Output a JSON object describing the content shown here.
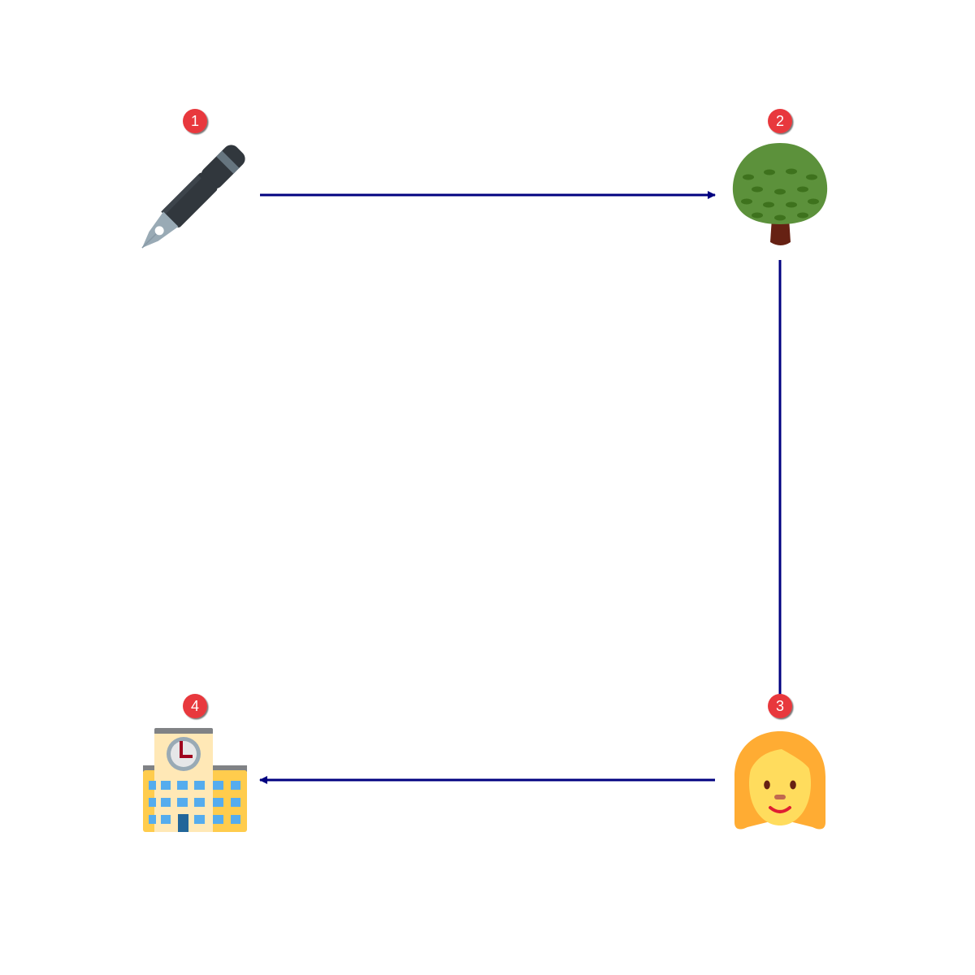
{
  "diagram": {
    "type": "flow-cycle",
    "edge_color": "#000080",
    "badge_color": "#e8393c",
    "nodes": [
      {
        "id": "pen",
        "icon": "fountain-pen-icon",
        "step": "1"
      },
      {
        "id": "tree",
        "icon": "deciduous-tree-icon",
        "step": "2"
      },
      {
        "id": "woman",
        "icon": "woman-face-icon",
        "step": "3"
      },
      {
        "id": "school",
        "icon": "school-building-icon",
        "step": "4"
      }
    ],
    "edges": [
      {
        "from": "pen",
        "to": "tree"
      },
      {
        "from": "tree",
        "to": "woman"
      },
      {
        "from": "woman",
        "to": "school"
      }
    ]
  }
}
